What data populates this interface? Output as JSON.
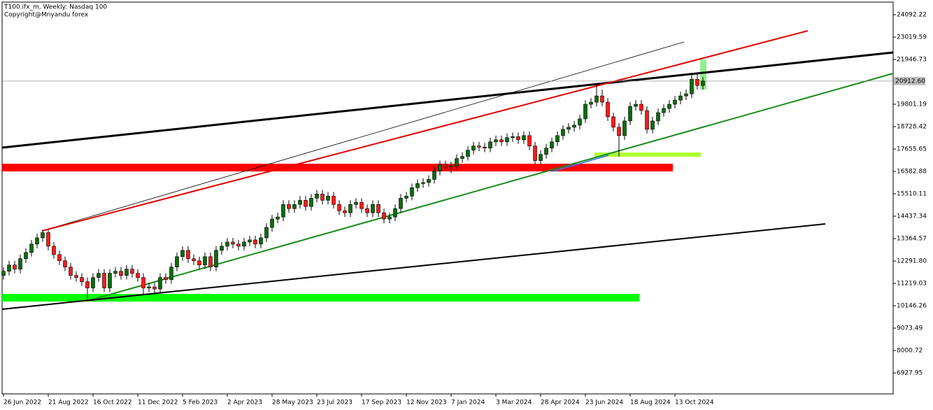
{
  "chart_data": {
    "type": "candlestick",
    "title": "T100.ifx_m, Weekly:  Nasdaq 100",
    "subtitle": "Copyright@Mnyandu forex",
    "categories": [
      "26 Jun 2022",
      null,
      null,
      null,
      null,
      null,
      null,
      null,
      "21 Aug 2022",
      null,
      null,
      null,
      null,
      null,
      null,
      null,
      "16 Oct 2022",
      null,
      null,
      null,
      null,
      null,
      null,
      null,
      "11 Dec 2022",
      null,
      null,
      null,
      null,
      null,
      null,
      null,
      "5 Feb 2023",
      null,
      null,
      null,
      null,
      null,
      null,
      null,
      "2 Apr 2023",
      null,
      null,
      null,
      null,
      null,
      null,
      null,
      "28 May 2023",
      null,
      null,
      null,
      null,
      null,
      null,
      null,
      "23 Jul 2023",
      null,
      null,
      null,
      null,
      null,
      null,
      null,
      "17 Sep 2023",
      null,
      null,
      null,
      null,
      null,
      null,
      null,
      "12 Nov 2023",
      null,
      null,
      null,
      null,
      null,
      null,
      null,
      "7 Jan 2024",
      null,
      null,
      null,
      null,
      null,
      null,
      null,
      "3 Mar 2024",
      null,
      null,
      null,
      null,
      null,
      null,
      null,
      "28 Apr 2024",
      null,
      null,
      null,
      null,
      null,
      null,
      null,
      "23 Jun 2024",
      null,
      null,
      null,
      null,
      null,
      null,
      null,
      "18 Aug 2024",
      null,
      null,
      null,
      null,
      null,
      null,
      null,
      "13 Oct 2024",
      null,
      null,
      null,
      null,
      null
    ],
    "open": [
      11600,
      11800,
      12100,
      11900,
      12400,
      12700,
      13100,
      13400,
      13650,
      13000,
      12600,
      12300,
      12000,
      11600,
      11500,
      11300,
      11000,
      11500,
      11700,
      11000,
      11700,
      11800,
      11600,
      11900,
      11700,
      11500,
      11000,
      11050,
      10950,
      11500,
      11400,
      12000,
      12500,
      12800,
      12400,
      12300,
      12100,
      12500,
      12000,
      12800,
      13000,
      13200,
      13100,
      13000,
      13200,
      13300,
      13100,
      13400,
      13900,
      14300,
      14400,
      15000,
      14800,
      15000,
      15200,
      14900,
      15300,
      15500,
      15200,
      15400,
      15000,
      14700,
      14600,
      15000,
      15100,
      14800,
      14600,
      15000,
      14600,
      14300,
      14400,
      14800,
      15300,
      15400,
      15800,
      16000,
      16050,
      16200,
      16600,
      16900,
      16800,
      16850,
      17200,
      17300,
      17600,
      17800,
      17750,
      17700,
      18000,
      18100,
      18000,
      18200,
      18250,
      18100,
      18300,
      17800,
      17100,
      17400,
      17700,
      18000,
      18300,
      18600,
      18700,
      18800,
      19100,
      19800,
      19900,
      20200,
      19900,
      19200,
      18700,
      18300,
      19000,
      19700,
      19800,
      19500,
      18600,
      19000,
      19400,
      19600,
      19800,
      20000,
      20200,
      20300,
      21000,
      20700
    ],
    "high": [
      12000,
      12300,
      12300,
      12600,
      12900,
      13300,
      13600,
      13750,
      13800,
      13200,
      12800,
      12500,
      12200,
      11800,
      11700,
      11500,
      11700,
      11900,
      11900,
      11900,
      12000,
      12000,
      12100,
      12100,
      11900,
      11700,
      11250,
      11250,
      11700,
      11700,
      12200,
      12700,
      13000,
      13000,
      12600,
      12500,
      12700,
      12700,
      13000,
      13200,
      13400,
      13400,
      13300,
      13400,
      13500,
      13500,
      13600,
      14100,
      14500,
      14600,
      15200,
      15200,
      15200,
      15400,
      15400,
      15500,
      15700,
      15700,
      15600,
      15600,
      15200,
      14900,
      15200,
      15300,
      15300,
      15000,
      15200,
      15200,
      14800,
      14600,
      15000,
      15500,
      15600,
      16000,
      16200,
      16250,
      16400,
      16800,
      17100,
      17100,
      17050,
      17400,
      17500,
      17800,
      18000,
      18000,
      17950,
      18200,
      18300,
      18300,
      18400,
      18450,
      18450,
      18500,
      18500,
      18000,
      17600,
      17900,
      18200,
      18500,
      18800,
      18900,
      19000,
      19300,
      20000,
      20100,
      20700,
      20500,
      20100,
      19400,
      18900,
      19200,
      19900,
      20000,
      20000,
      19700,
      19200,
      19600,
      19800,
      20000,
      20200,
      20400,
      20500,
      21200,
      21300,
      21100
    ],
    "low": [
      11400,
      11600,
      11700,
      11700,
      12200,
      12500,
      12900,
      13200,
      12800,
      12400,
      12100,
      11800,
      11400,
      11300,
      11100,
      10450,
      10800,
      11300,
      10800,
      10800,
      11500,
      11400,
      11400,
      11500,
      11300,
      10700,
      10800,
      10750,
      10750,
      11200,
      11200,
      11800,
      12300,
      12200,
      12100,
      11900,
      11900,
      11800,
      11800,
      12600,
      12800,
      12900,
      12800,
      12800,
      13000,
      12900,
      12900,
      13200,
      13700,
      14100,
      14200,
      14600,
      14600,
      14800,
      14700,
      14700,
      15100,
      15000,
      15000,
      14800,
      14500,
      14400,
      14400,
      14800,
      14600,
      14400,
      14400,
      14400,
      14100,
      14100,
      14200,
      14600,
      15100,
      15200,
      15600,
      15800,
      15850,
      16000,
      16400,
      16600,
      16500,
      16650,
      17000,
      17100,
      17400,
      17550,
      17500,
      17500,
      17800,
      17800,
      17800,
      18000,
      17900,
      17900,
      17600,
      16900,
      16900,
      17200,
      17500,
      17800,
      18100,
      18400,
      18500,
      18600,
      18900,
      19600,
      19700,
      19700,
      19000,
      18500,
      17300,
      18100,
      18800,
      19500,
      19300,
      18400,
      18400,
      18800,
      19200,
      19400,
      19600,
      19800,
      20000,
      20100,
      20500,
      20500
    ],
    "close": [
      11800,
      12100,
      11900,
      12400,
      12700,
      13100,
      13400,
      13650,
      13000,
      12600,
      12300,
      12000,
      11600,
      11500,
      11300,
      11000,
      11500,
      11700,
      11000,
      11700,
      11800,
      11600,
      11900,
      11700,
      11500,
      11000,
      11050,
      10950,
      11500,
      11400,
      12000,
      12500,
      12800,
      12400,
      12300,
      12100,
      12500,
      12000,
      12800,
      13000,
      13200,
      13100,
      13000,
      13200,
      13300,
      13100,
      13400,
      13900,
      14300,
      14400,
      15000,
      14800,
      15000,
      15200,
      14900,
      15300,
      15500,
      15200,
      15400,
      15000,
      14700,
      14600,
      15000,
      15100,
      14800,
      14600,
      15000,
      14600,
      14300,
      14400,
      14800,
      15300,
      15400,
      15800,
      16000,
      16050,
      16200,
      16600,
      16900,
      16800,
      16850,
      17200,
      17300,
      17600,
      17800,
      17750,
      17700,
      18000,
      18100,
      18000,
      18200,
      18250,
      18100,
      18300,
      17800,
      17100,
      17400,
      17700,
      18000,
      18300,
      18600,
      18700,
      18800,
      19100,
      19800,
      19900,
      20200,
      19900,
      19200,
      18700,
      18300,
      19000,
      19700,
      19800,
      19500,
      18600,
      19000,
      19400,
      19600,
      19800,
      20000,
      20200,
      20300,
      21000,
      20700,
      20912.6
    ],
    "up_color": "#0a6e0a",
    "down_color": "#ff1a1a",
    "last_price": {
      "value": 20912.6,
      "label": "20912.60"
    },
    "ylim": [
      5922,
      24696
    ],
    "yticks": [
      24092.22,
      23019.59,
      21946.73,
      19801.19,
      18728.42,
      17655.65,
      16582.88,
      15510.11,
      14437.34,
      13364.57,
      {
        "value": 12291.8,
        "label": "12291.80"
      },
      11219.03,
      10146.26,
      9073.49,
      8000.72,
      6927.95
    ]
  }
}
